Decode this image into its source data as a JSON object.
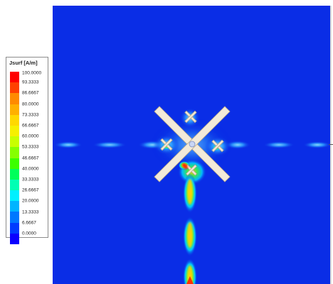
{
  "legend": {
    "title": "Jsurf [A/m]",
    "ticks": [
      "100.0000",
      "93.3333",
      "86.6667",
      "80.0000",
      "73.3333",
      "66.6667",
      "60.0000",
      "53.3333",
      "46.6667",
      "40.0000",
      "33.3333",
      "26.6667",
      "20.0000",
      "13.3333",
      "6.6667",
      "0.0000"
    ],
    "colors": [
      "#ff0000",
      "#ff4000",
      "#ff8a00",
      "#ffb000",
      "#ffd800",
      "#f6f000",
      "#c8ff00",
      "#86ff00",
      "#3cff00",
      "#00ff5a",
      "#00ffb4",
      "#00f0ff",
      "#00b4ff",
      "#0078ff",
      "#003cff",
      "#0a00ff"
    ]
  },
  "plot": {
    "background": "#0a2de6",
    "structure_color": "#f2ead9"
  }
}
